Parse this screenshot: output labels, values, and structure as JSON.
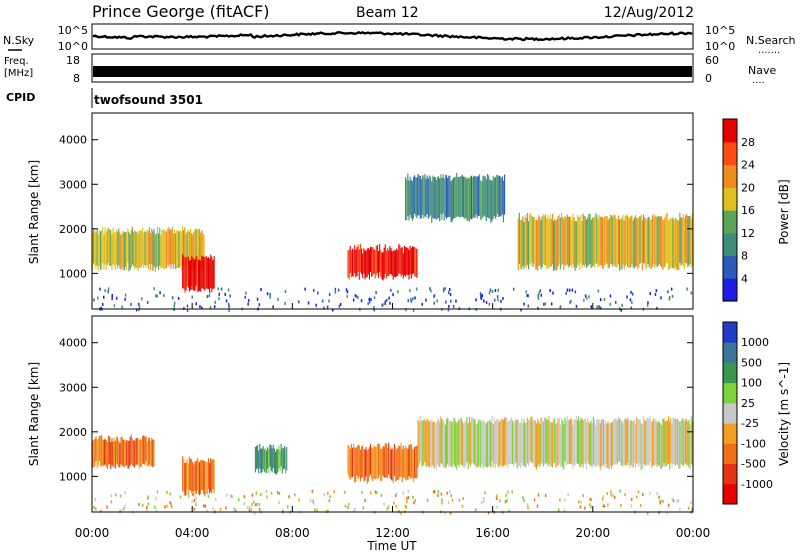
{
  "header": {
    "station": "Prince George (fitACF)",
    "beam": "Beam 12",
    "date": "12/Aug/2012"
  },
  "nsky_panel": {
    "left_label": "N.Sky",
    "right_label": "N.Search",
    "left_ticks": [
      "10^5",
      "10^0"
    ],
    "right_ticks": [
      "10^5",
      "10^0"
    ]
  },
  "freq_panel": {
    "left_label_line1": "Freq.",
    "left_label_line2": "[MHz]",
    "right_label": "Nave",
    "left_ticks": [
      "18",
      "8"
    ],
    "right_ticks": [
      "60",
      "0"
    ]
  },
  "cpid": {
    "label": "CPID",
    "value": "twofsound 3501"
  },
  "x_axis": {
    "label": "Time UT",
    "ticks": [
      "00:00",
      "04:00",
      "08:00",
      "12:00",
      "16:00",
      "20:00",
      "00:00"
    ]
  },
  "chart_data": [
    {
      "type": "heatmap",
      "name": "power",
      "ylabel": "Slant Range [km]",
      "yticks": [
        1000,
        2000,
        3000,
        4000
      ],
      "ylim": [
        200,
        4600
      ],
      "xlim_hours": [
        0,
        24
      ],
      "colorbar": {
        "label": "Power [dB]",
        "ticks": [
          "4",
          "8",
          "12",
          "16",
          "20",
          "24",
          "28"
        ],
        "colors": [
          "#1e1ee6",
          "#2a5bb8",
          "#3f8c7a",
          "#5aa55a",
          "#e0c020",
          "#f08a1e",
          "#ff4a14",
          "#e60000"
        ]
      },
      "bands": [
        {
          "t0": 0.0,
          "t1": 4.5,
          "r0": 1100,
          "r1": 2000,
          "level": 4
        },
        {
          "t0": 3.6,
          "t1": 4.9,
          "r0": 600,
          "r1": 1400,
          "level": 7
        },
        {
          "t0": 10.2,
          "t1": 13.0,
          "r0": 900,
          "r1": 1600,
          "level": 7
        },
        {
          "t0": 12.5,
          "t1": 16.5,
          "r0": 2200,
          "r1": 3200,
          "level": 2
        },
        {
          "t0": 17.0,
          "t1": 24.0,
          "r0": 1100,
          "r1": 2300,
          "level": 4
        }
      ]
    },
    {
      "type": "heatmap",
      "name": "velocity",
      "ylabel": "Slant Range [km]",
      "yticks": [
        1000,
        2000,
        3000,
        4000
      ],
      "ylim": [
        200,
        4600
      ],
      "xlim_hours": [
        0,
        24
      ],
      "colorbar": {
        "label": "Velocity [m s^-1]",
        "ticks": [
          "1000",
          "500",
          "100",
          "25",
          "-25",
          "-100",
          "-500",
          "-1000"
        ],
        "colors": [
          "#1e3cc8",
          "#3c7896",
          "#3c9650",
          "#7ad23c",
          "#c8c8c8",
          "#f0a01e",
          "#f06e14",
          "#e63214",
          "#e60000"
        ]
      },
      "bands": [
        {
          "t0": 0.0,
          "t1": 2.5,
          "r0": 1200,
          "r1": 1900,
          "level": 6
        },
        {
          "t0": 3.6,
          "t1": 4.9,
          "r0": 600,
          "r1": 1400,
          "level": 6
        },
        {
          "t0": 6.5,
          "t1": 7.8,
          "r0": 1100,
          "r1": 1700,
          "level": 2
        },
        {
          "t0": 10.2,
          "t1": 13.0,
          "r0": 900,
          "r1": 1700,
          "level": 6
        },
        {
          "t0": 13.0,
          "t1": 24.0,
          "r0": 1200,
          "r1": 2300,
          "level": 4
        }
      ]
    }
  ]
}
